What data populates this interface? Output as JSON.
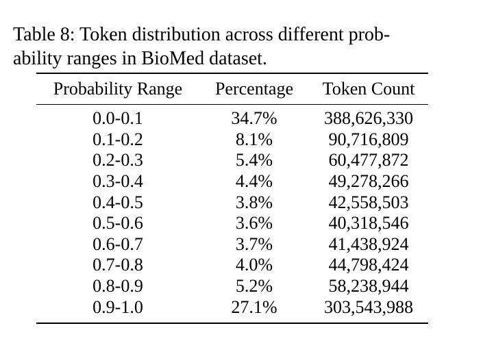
{
  "caption": {
    "line1": "Table 8:  Token distribution across different prob-",
    "line2": "ability ranges in BioMed dataset."
  },
  "table": {
    "headers": [
      "Probability Range",
      "Percentage",
      "Token Count"
    ],
    "rows": [
      [
        "0.0-0.1",
        "34.7%",
        "388,626,330"
      ],
      [
        "0.1-0.2",
        "8.1%",
        "90,716,809"
      ],
      [
        "0.2-0.3",
        "5.4%",
        "60,477,872"
      ],
      [
        "0.3-0.4",
        "4.4%",
        "49,278,266"
      ],
      [
        "0.4-0.5",
        "3.8%",
        "42,558,503"
      ],
      [
        "0.5-0.6",
        "3.6%",
        "40,318,546"
      ],
      [
        "0.6-0.7",
        "3.7%",
        "41,438,924"
      ],
      [
        "0.7-0.8",
        "4.0%",
        "44,798,424"
      ],
      [
        "0.8-0.9",
        "5.2%",
        "58,238,944"
      ],
      [
        "0.9-1.0",
        "27.1%",
        "303,543,988"
      ]
    ]
  }
}
